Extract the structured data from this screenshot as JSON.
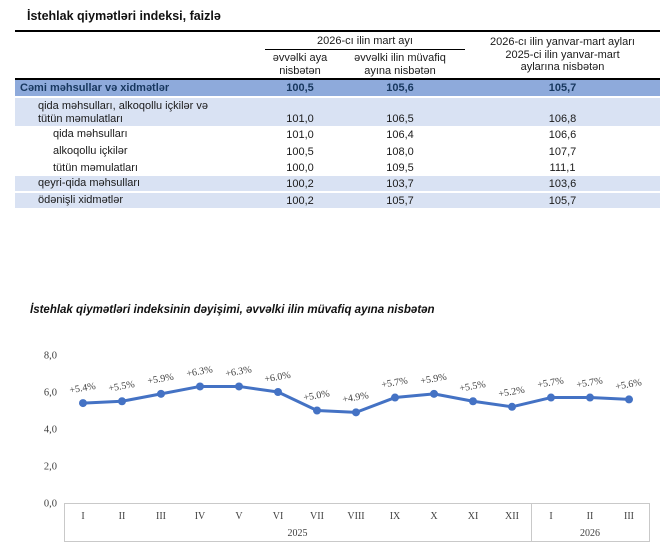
{
  "doc": {
    "title": "İstehlak qiymətləri indeksi, faizlə"
  },
  "table": {
    "header": {
      "group": "2026-cı ilin mart ayı",
      "col1": "əvvəlki aya\nnisbətən",
      "col2": "əvvəlki ilin müvafiq\nayına nisbətən",
      "col3": "2026-cı ilin yanvar-mart ayları\n2025-ci ilin yanvar-mart\naylarına nisbətən"
    },
    "rows": [
      {
        "label": "Cəmi məhsullar və xidmətlər",
        "v1": "100,5",
        "v2": "105,6",
        "v3": "105,7"
      },
      {
        "label": "qida məhsulları, alkoqollu içkilər və\ntütün məmulatları",
        "v1": "101,0",
        "v2": "106,5",
        "v3": "106,8"
      },
      {
        "label": "qida məhsulları",
        "v1": "101,0",
        "v2": "106,4",
        "v3": "106,6"
      },
      {
        "label": "alkoqollu içkilər",
        "v1": "100,5",
        "v2": "108,0",
        "v3": "107,7"
      },
      {
        "label": "tütün məmulatları",
        "v1": "100,0",
        "v2": "109,5",
        "v3": "111,1"
      },
      {
        "label": "qeyri-qida məhsulları",
        "v1": "100,2",
        "v2": "103,7",
        "v3": "103,6"
      },
      {
        "label": "ödənişli xidmətlər",
        "v1": "100,2",
        "v2": "105,7",
        "v3": "105,7"
      }
    ],
    "colors": {
      "header_row_bg": "#8EAADB",
      "band_bg": "#D9E2F3"
    }
  },
  "chart": {
    "title": "İstehlak qiymətləri indeksinin dəyişimi, əvvəlki ilin müvafiq ayına nisbətən"
  },
  "chart_data": {
    "type": "line",
    "title": "İstehlak qiymətləri indeksinin dəyişimi, əvvəlki ilin müvafiq ayına nisbətən",
    "x": [
      "I",
      "II",
      "III",
      "IV",
      "V",
      "VI",
      "VII",
      "VIII",
      "IX",
      "X",
      "XI",
      "XII",
      "I",
      "II",
      "III"
    ],
    "x_groups": [
      {
        "label": "2025",
        "count": 12
      },
      {
        "label": "2026",
        "count": 3
      }
    ],
    "values": [
      5.4,
      5.5,
      5.9,
      6.3,
      6.3,
      6.0,
      5.0,
      4.9,
      5.7,
      5.9,
      5.5,
      5.2,
      5.7,
      5.7,
      5.6
    ],
    "point_labels": [
      "+5.4%",
      "+5.5%",
      "+5.9%",
      "+6.3%",
      "+6.3%",
      "+6.0%",
      "+5.0%",
      "+4.9%",
      "+5.7%",
      "+5.9%",
      "+5.5%",
      "+5.2%",
      "+5.7%",
      "+5.7%",
      "+5.6%"
    ],
    "ylim": [
      0,
      8
    ],
    "ytick_values": [
      0,
      2,
      4,
      6,
      8
    ],
    "yticks": [
      "0,0",
      "2,0",
      "4,0",
      "6,0",
      "8,0"
    ],
    "xlabel": "",
    "ylabel": "",
    "grid": false,
    "legend": "none",
    "line_color": "#4472C4"
  }
}
